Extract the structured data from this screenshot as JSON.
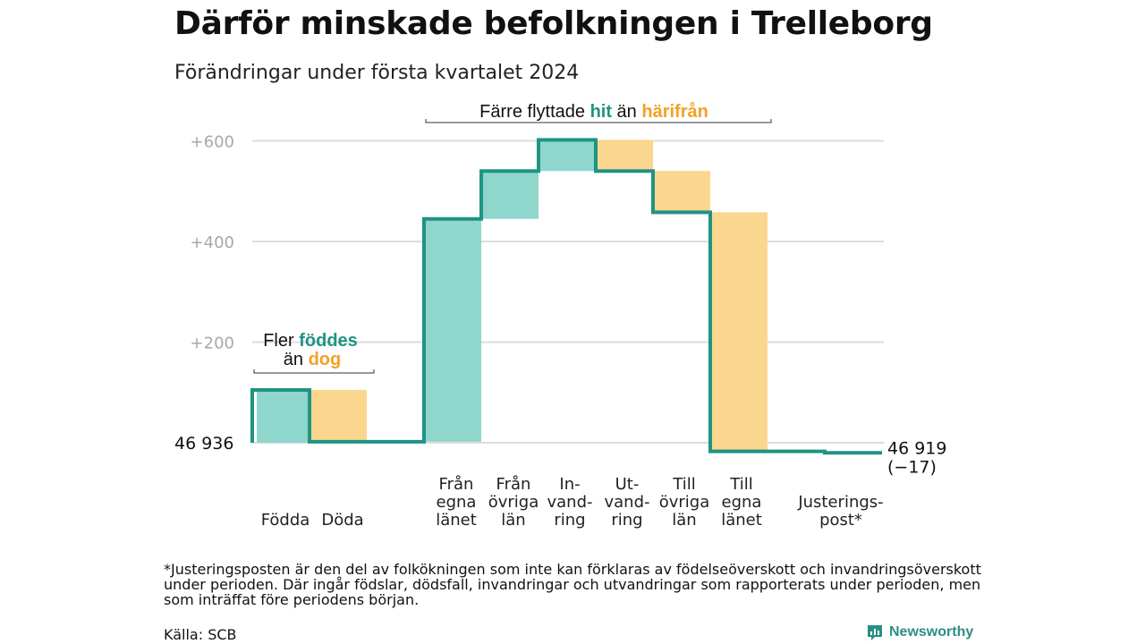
{
  "title": "Därför minskade befolkningen i Trelleborg",
  "subtitle": "Förändringar under första kvartalet 2024",
  "colors": {
    "increase": "#8fd6cd",
    "decrease": "#fad68e",
    "line": "#1f9385",
    "teal_text": "#1f9385",
    "orange_text": "#f2a126",
    "grid": "#dddddd",
    "axis_text": "#a8a8a8"
  },
  "chart_data": {
    "type": "waterfall",
    "start_label": "46  936",
    "end_label": "46 919",
    "end_change": "(−17)",
    "baseline_population": 46936,
    "ylim": [
      -30,
      620
    ],
    "yticks": [
      200,
      400,
      600
    ],
    "ytick_labels": [
      "+200",
      "+400",
      "+600"
    ],
    "grid": true,
    "steps": [
      {
        "label": "Födda",
        "change": 105
      },
      {
        "label": "Döda",
        "change": -103
      },
      {
        "label": "",
        "change": 0
      },
      {
        "label": "Från egna länet",
        "change": 443
      },
      {
        "label": "Från övriga län",
        "change": 95
      },
      {
        "label": "In- vand- ring",
        "change": 62
      },
      {
        "label": "Ut- vand- ring",
        "change": -62
      },
      {
        "label": "Till övriga län",
        "change": -82
      },
      {
        "label": "Till egna länet",
        "change": -475
      },
      {
        "label": "",
        "change": 0
      },
      {
        "label": "Justerings- post*",
        "change": -3
      }
    ],
    "annotations": {
      "births": {
        "prefix": "Fler",
        "teal": "föddes",
        "mid": "än",
        "orange": "dog"
      },
      "moves": {
        "prefix": "Färre flyttade",
        "teal": "hit",
        "mid": "än",
        "orange": "härifrån"
      }
    }
  },
  "xlabels": {
    "fodda": "Födda",
    "doda": "Döda",
    "fran_egna": [
      "Från",
      "egna",
      "länet"
    ],
    "fran_ovriga": [
      "Från",
      "övriga",
      "län"
    ],
    "invandring": [
      "In-",
      "vand-",
      "ring"
    ],
    "utvandring": [
      "Ut-",
      "vand-",
      "ring"
    ],
    "till_ovriga": [
      "Till",
      "övriga",
      "län"
    ],
    "till_egna": [
      "Till",
      "egna",
      "länet"
    ],
    "justering": [
      "Justerings-",
      "post*"
    ]
  },
  "footnote": "*Justeringsposten är den del av folkökningen som inte kan förklaras av födelseöverskott och invandringsöverskott under perioden. Där ingår födslar, dödsfall, invandringar och utvandringar som rapporterats under perioden, men som inträffat före periodens början.",
  "source": "Källa: SCB",
  "logo": {
    "text": "Newsworthy",
    "icon": "newsworthy-logo-icon"
  }
}
